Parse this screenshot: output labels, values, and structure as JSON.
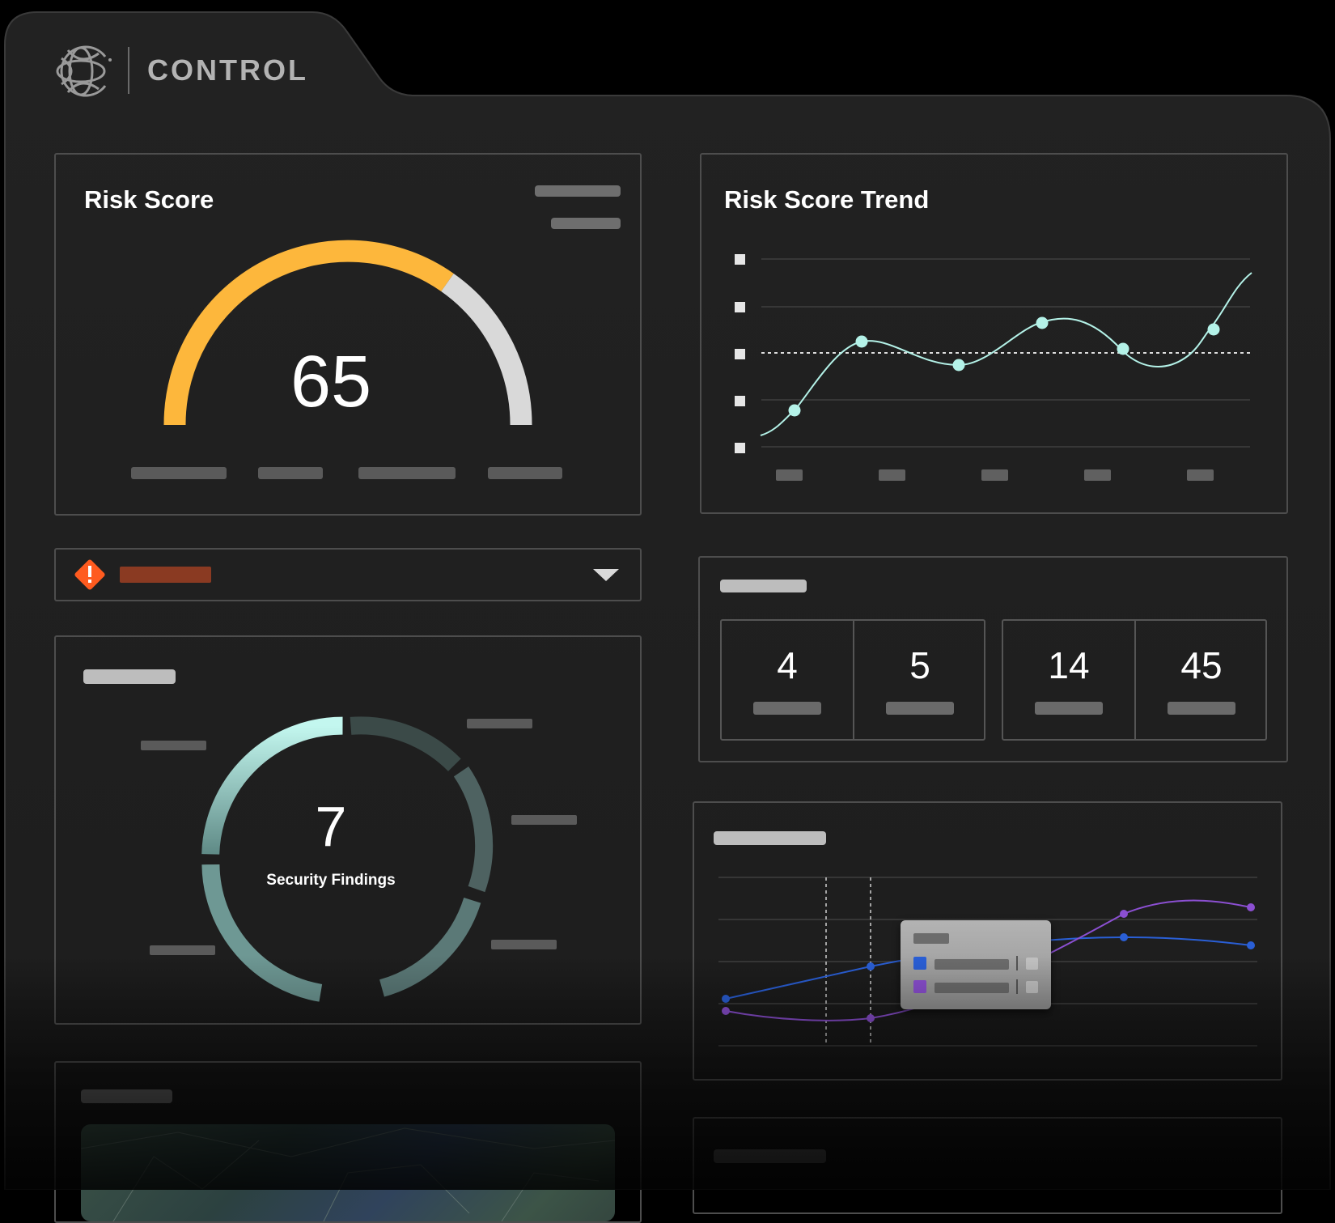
{
  "app": {
    "brand": "CONTROL",
    "logo_icon": "crescent-globe-logo-icon"
  },
  "risk_score": {
    "title": "Risk Score",
    "score": "65",
    "gauge_fraction": 0.65,
    "colors": {
      "filled": "#fdb73c",
      "remaining": "#d9d9d9"
    }
  },
  "risk_score_trend": {
    "title": "Risk Score Trend",
    "line_color": "#b4f2e8"
  },
  "alert_dropdown": {
    "icon": "warning-diamond-icon",
    "chevron": "chevron-down-icon",
    "icon_color": "#ff5b1f",
    "bar_color": "#8a3a22"
  },
  "security_findings": {
    "count": "7",
    "label": "Security Findings"
  },
  "stats": {
    "values": [
      "4",
      "5",
      "14",
      "45"
    ]
  },
  "comparison_chart": {
    "series_colors": [
      "#2a5fd6",
      "#8b4fd1"
    ],
    "tooltip_icons": [
      "blue-series-swatch-icon",
      "purple-series-swatch-icon"
    ]
  }
}
